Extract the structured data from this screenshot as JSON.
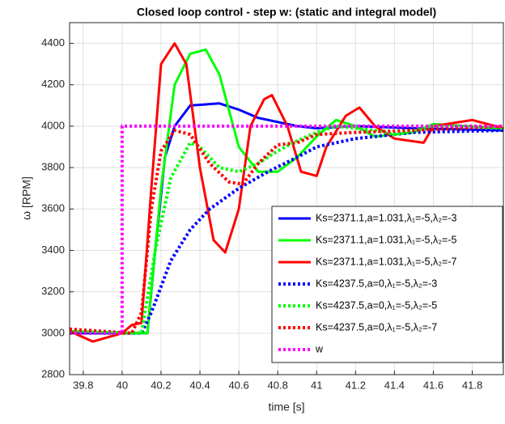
{
  "chart_data": {
    "type": "line",
    "title": "Closed loop control - step w: (static and integral model)",
    "xlabel": "time [s]",
    "ylabel": "ω [RPM]",
    "xlim": [
      39.73,
      41.96
    ],
    "ylim": [
      2800,
      4500
    ],
    "xticks": [
      39.8,
      40,
      40.2,
      40.4,
      40.6,
      40.8,
      41,
      41.2,
      41.4,
      41.6,
      41.8
    ],
    "yticks": [
      2800,
      3000,
      3200,
      3400,
      3600,
      3800,
      4000,
      4200,
      4400
    ],
    "grid": true,
    "legend": "lower right",
    "series": [
      {
        "name": "Ks=2371.1,a=1.031,λ₁=-5,λ₂=-3",
        "color": "#0000ff",
        "style": "solid",
        "x": [
          39.73,
          40.13,
          40.17,
          40.22,
          40.27,
          40.35,
          40.5,
          40.6,
          40.7,
          40.9,
          41.0,
          41.2,
          41.5,
          41.96
        ],
        "values": [
          3000,
          3000,
          3400,
          3850,
          4000,
          4100,
          4110,
          4080,
          4040,
          4000,
          3990,
          4000,
          3990,
          3980
        ]
      },
      {
        "name": "Ks=2371.1,a=1.031,λ₁=-5,λ₂=-5",
        "color": "#00ff00",
        "style": "solid",
        "x": [
          39.73,
          40.13,
          40.2,
          40.27,
          40.35,
          40.43,
          40.5,
          40.6,
          40.7,
          40.8,
          40.9,
          41.0,
          41.1,
          41.2,
          41.3,
          41.5,
          41.6,
          41.96
        ],
        "values": [
          3010,
          3000,
          3700,
          4200,
          4350,
          4370,
          4250,
          3900,
          3780,
          3780,
          3850,
          3950,
          4030,
          4000,
          3950,
          3970,
          4010,
          3990
        ]
      },
      {
        "name": "Ks=2371.1,a=1.031,λ₁=-5,λ₂=-7",
        "color": "#ff0000",
        "style": "solid",
        "x": [
          39.73,
          39.85,
          40.0,
          40.05,
          40.1,
          40.15,
          40.2,
          40.27,
          40.33,
          40.4,
          40.47,
          40.53,
          40.6,
          40.66,
          40.73,
          40.77,
          40.85,
          40.92,
          41.0,
          41.05,
          41.15,
          41.22,
          41.3,
          41.4,
          41.55,
          41.6,
          41.8,
          41.96
        ],
        "values": [
          3010,
          2960,
          3000,
          3040,
          3050,
          3700,
          4300,
          4400,
          4300,
          3800,
          3450,
          3390,
          3600,
          4000,
          4130,
          4150,
          4000,
          3780,
          3760,
          3900,
          4050,
          4090,
          4000,
          3940,
          3920,
          4000,
          4030,
          3990
        ]
      },
      {
        "name": "Ks=4237.5,a=0,λ₁=-5,λ₂=-3",
        "color": "#0000ff",
        "style": "dotted",
        "x": [
          39.73,
          40.1,
          40.15,
          40.25,
          40.35,
          40.45,
          40.6,
          40.75,
          40.9,
          41.0,
          41.2,
          41.5,
          41.96
        ],
        "values": [
          3000,
          3000,
          3100,
          3350,
          3500,
          3600,
          3700,
          3780,
          3850,
          3900,
          3940,
          3970,
          3980
        ]
      },
      {
        "name": "Ks=4237.5,a=0,λ₁=-5,λ₂=-5",
        "color": "#00ff00",
        "style": "dotted",
        "x": [
          39.73,
          40.1,
          40.17,
          40.25,
          40.35,
          40.4,
          40.5,
          40.6,
          40.7,
          40.8,
          40.9,
          41.0,
          41.1,
          41.3,
          41.4,
          41.6,
          41.96
        ],
        "values": [
          3000,
          3000,
          3400,
          3750,
          3920,
          3900,
          3800,
          3780,
          3820,
          3880,
          3930,
          3970,
          4000,
          3980,
          3960,
          4000,
          3990
        ]
      },
      {
        "name": "Ks=4237.5,a=0,λ₁=-5,λ₂=-7",
        "color": "#ff0000",
        "style": "dotted",
        "x": [
          39.73,
          40.05,
          40.1,
          40.15,
          40.2,
          40.27,
          40.35,
          40.45,
          40.55,
          40.62,
          40.7,
          40.8,
          40.9,
          41.0,
          41.2,
          41.5,
          41.96
        ],
        "values": [
          3020,
          3000,
          3100,
          3600,
          3880,
          3980,
          3960,
          3820,
          3730,
          3720,
          3820,
          3910,
          3920,
          3960,
          3970,
          3980,
          4000
        ]
      },
      {
        "name": "w",
        "color": "#ff00ff",
        "style": "dotted",
        "x": [
          39.73,
          40,
          40,
          41.96
        ],
        "values": [
          3000,
          3000,
          4000,
          4000
        ]
      }
    ]
  }
}
